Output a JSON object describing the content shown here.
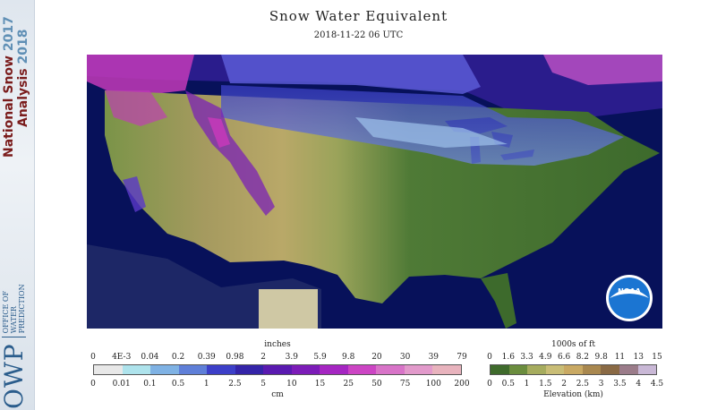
{
  "sidebar": {
    "title_line1_text": "National Snow",
    "title_line1_year": "2017",
    "title_line2_text": "Analysis",
    "title_line2_year": "2018",
    "owp_abbrev": "OWP",
    "owp_line1": "OFFICE OF",
    "owp_line2": "WATER",
    "owp_line3": "PREDICTION"
  },
  "header": {
    "title": "Snow Water Equivalent",
    "timestamp": "2018-11-22 06 UTC"
  },
  "map": {
    "logo_text": "NOAA",
    "ocean_color": "#07115a",
    "canada_color": "#2a1c8c"
  },
  "swe_legend": {
    "unit_top": "inches",
    "unit_bottom": "cm",
    "ticks_inches": [
      "0",
      "4E-3",
      "0.04",
      "0.2",
      "0.39",
      "0.98",
      "2",
      "3.9",
      "5.9",
      "9.8",
      "20",
      "30",
      "39",
      "79"
    ],
    "ticks_cm": [
      "0",
      "0.01",
      "0.1",
      "0.5",
      "1",
      "2.5",
      "5",
      "10",
      "15",
      "25",
      "50",
      "75",
      "100",
      "200"
    ],
    "colors": [
      "#e8e8e8",
      "#aee3ec",
      "#7fb2e4",
      "#5f7fd8",
      "#3c3fc8",
      "#3424a8",
      "#5a1ab0",
      "#7c1cb8",
      "#a526c2",
      "#cc45c4",
      "#d874c8",
      "#e29acb",
      "#e8b3bd"
    ]
  },
  "elev_legend": {
    "unit_top": "1000s of ft",
    "unit_bottom": "Elevation (km)",
    "ticks_ft": [
      "0",
      "1.6",
      "3.3",
      "4.9",
      "6.6",
      "8.2",
      "9.8",
      "11",
      "13",
      "15"
    ],
    "ticks_km": [
      "0",
      "0.5",
      "1",
      "1.5",
      "2",
      "2.5",
      "3",
      "3.5",
      "4",
      "4.5"
    ],
    "colors": [
      "#3f6b2c",
      "#6b8d3e",
      "#a6ac5e",
      "#c9bd76",
      "#c9a963",
      "#a9884f",
      "#8a6a45",
      "#9b7c8a",
      "#c9b8d6"
    ]
  }
}
